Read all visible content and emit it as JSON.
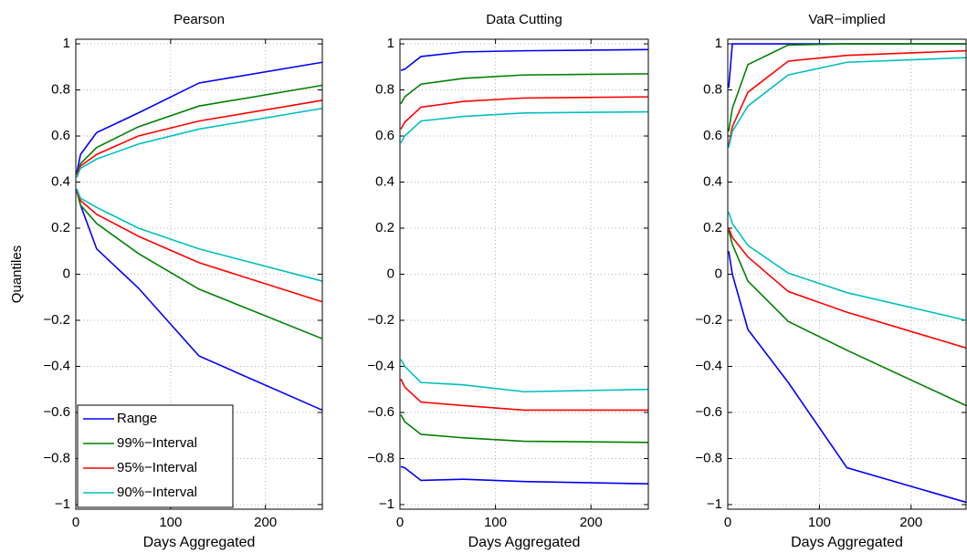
{
  "chart_data": [
    {
      "type": "line",
      "title": "Pearson",
      "xlabel": "Days Aggregated",
      "ylabel": "Quantiles",
      "x": [
        1,
        5,
        22,
        66,
        130,
        260
      ],
      "xlim": [
        0,
        260
      ],
      "xticks": [
        0,
        100,
        200
      ],
      "ylim": [
        -1.02,
        1.02
      ],
      "yticks": [
        {
          "value": -1,
          "label": "−1"
        },
        {
          "value": -0.8,
          "label": "−0.8"
        },
        {
          "value": -0.6,
          "label": "−0.6"
        },
        {
          "value": -0.4,
          "label": "−0.4"
        },
        {
          "value": -0.2,
          "label": "−0.2"
        },
        0,
        0.2,
        0.4,
        0.6,
        0.8,
        1
      ],
      "grid": true,
      "legend": "lower left",
      "series": [
        {
          "name": "Range",
          "color": "#0000ff",
          "upper": [
            0.44,
            0.52,
            0.615,
            0.7,
            0.83,
            0.92
          ],
          "lower": [
            0.37,
            0.3,
            0.11,
            -0.06,
            -0.355,
            -0.59
          ]
        },
        {
          "name": "99%−Interval",
          "color": "#008000",
          "upper": [
            0.43,
            0.48,
            0.55,
            0.64,
            0.73,
            0.82
          ],
          "lower": [
            0.36,
            0.3,
            0.22,
            0.09,
            -0.065,
            -0.28
          ]
        },
        {
          "name": "95%−Interval",
          "color": "#ff0000",
          "upper": [
            0.43,
            0.47,
            0.52,
            0.6,
            0.665,
            0.755
          ],
          "lower": [
            0.36,
            0.32,
            0.26,
            0.165,
            0.05,
            -0.12
          ]
        },
        {
          "name": "90%−Interval",
          "color": "#00bfbf",
          "upper": [
            0.42,
            0.46,
            0.5,
            0.565,
            0.63,
            0.72
          ],
          "lower": [
            0.37,
            0.33,
            0.29,
            0.2,
            0.11,
            -0.03
          ]
        }
      ]
    },
    {
      "type": "line",
      "title": "Data Cutting",
      "xlabel": "Days Aggregated",
      "x": [
        1,
        5,
        22,
        66,
        130,
        260
      ],
      "xlim": [
        0,
        260
      ],
      "xticks": [
        0,
        100,
        200
      ],
      "ylim": [
        -1.02,
        1.02
      ],
      "yticks": [
        {
          "value": -1,
          "label": "−1"
        },
        {
          "value": -0.8,
          "label": "−0.8"
        },
        {
          "value": -0.6,
          "label": "−0.6"
        },
        {
          "value": -0.4,
          "label": "−0.4"
        },
        {
          "value": -0.2,
          "label": "−0.2"
        },
        0,
        0.2,
        0.4,
        0.6,
        0.8,
        1
      ],
      "grid": true,
      "series": [
        {
          "color": "#0000ff",
          "upper": [
            0.885,
            0.89,
            0.945,
            0.965,
            0.97,
            0.975
          ],
          "lower": [
            -0.835,
            -0.84,
            -0.895,
            -0.89,
            -0.9,
            -0.91
          ]
        },
        {
          "color": "#008000",
          "upper": [
            0.74,
            0.77,
            0.825,
            0.85,
            0.865,
            0.87
          ],
          "lower": [
            -0.61,
            -0.64,
            -0.695,
            -0.71,
            -0.725,
            -0.73
          ]
        },
        {
          "color": "#ff0000",
          "upper": [
            0.63,
            0.66,
            0.725,
            0.75,
            0.765,
            0.77
          ],
          "lower": [
            -0.455,
            -0.49,
            -0.555,
            -0.57,
            -0.59,
            -0.59
          ]
        },
        {
          "color": "#00bfbf",
          "upper": [
            0.57,
            0.6,
            0.665,
            0.685,
            0.7,
            0.705
          ],
          "lower": [
            -0.37,
            -0.4,
            -0.47,
            -0.48,
            -0.51,
            -0.5
          ]
        }
      ]
    },
    {
      "type": "line",
      "title": "VaR−implied",
      "xlabel": "Days Aggregated",
      "x": [
        1,
        5,
        22,
        66,
        130,
        260
      ],
      "xlim": [
        0,
        260
      ],
      "xticks": [
        0,
        100,
        200
      ],
      "ylim": [
        -1.02,
        1.02
      ],
      "yticks": [
        {
          "value": -1,
          "label": "−1"
        },
        {
          "value": -0.8,
          "label": "−0.8"
        },
        {
          "value": -0.6,
          "label": "−0.6"
        },
        {
          "value": -0.4,
          "label": "−0.4"
        },
        {
          "value": -0.2,
          "label": "−0.2"
        },
        0,
        0.2,
        0.4,
        0.6,
        0.8,
        1
      ],
      "grid": true,
      "series": [
        {
          "color": "#0000ff",
          "upper": [
            0.81,
            1.0,
            1.0,
            1.0,
            1.0,
            1.0
          ],
          "lower": [
            0.1,
            0.0,
            -0.24,
            -0.47,
            -0.84,
            -0.99
          ]
        },
        {
          "color": "#008000",
          "upper": [
            0.62,
            0.72,
            0.91,
            0.995,
            1.0,
            1.0
          ],
          "lower": [
            0.19,
            0.13,
            -0.03,
            -0.205,
            -0.33,
            -0.57
          ]
        },
        {
          "color": "#ff0000",
          "upper": [
            0.56,
            0.64,
            0.79,
            0.925,
            0.95,
            0.97
          ],
          "lower": [
            0.2,
            0.16,
            0.075,
            -0.075,
            -0.165,
            -0.32
          ]
        },
        {
          "color": "#00bfbf",
          "upper": [
            0.55,
            0.62,
            0.73,
            0.865,
            0.92,
            0.94
          ],
          "lower": [
            0.27,
            0.22,
            0.125,
            0.005,
            -0.08,
            -0.2
          ]
        }
      ]
    }
  ]
}
